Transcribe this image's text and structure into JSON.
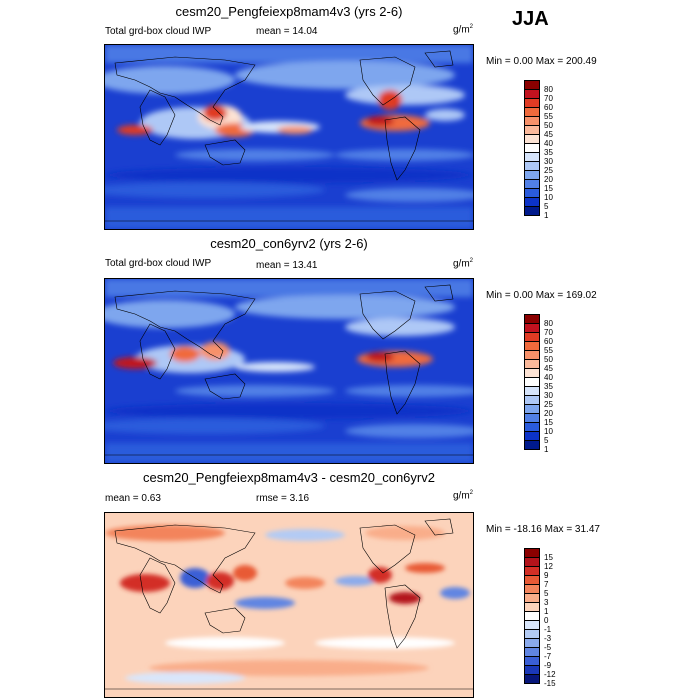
{
  "season": "JJA",
  "panels": [
    {
      "title": "cesm20_Pengfeiexp8mam4v3 (yrs 2-6)",
      "left_label": "Total grd-box cloud IWP",
      "stat": "mean =  14.04",
      "units": "g/m",
      "units_sup": "2",
      "minmax": "Min =   0.00 Max = 200.49",
      "levels": [
        "80",
        "70",
        "60",
        "55",
        "50",
        "45",
        "40",
        "35",
        "30",
        "25",
        "20",
        "15",
        "10",
        "5",
        "1"
      ],
      "colors": [
        "#8b0000",
        "#c1121f",
        "#e03b24",
        "#f06a3c",
        "#f7916a",
        "#fbb99b",
        "#fde3d4",
        "#ffffff",
        "#d6e4fb",
        "#aec8f6",
        "#7ea6ee",
        "#5180e6",
        "#2a5bdc",
        "#0c33c8",
        "#001a8c"
      ]
    },
    {
      "title": "cesm20_con6yrv2 (yrs 2-6)",
      "left_label": "Total grd-box cloud IWP",
      "stat": "mean =  13.41",
      "units": "g/m",
      "units_sup": "2",
      "minmax": "Min =   0.00 Max = 169.02",
      "levels": [
        "80",
        "70",
        "60",
        "55",
        "50",
        "45",
        "40",
        "35",
        "30",
        "25",
        "20",
        "15",
        "10",
        "5",
        "1"
      ],
      "colors": [
        "#8b0000",
        "#c1121f",
        "#e03b24",
        "#f06a3c",
        "#f7916a",
        "#fbb99b",
        "#fde3d4",
        "#ffffff",
        "#d6e4fb",
        "#aec8f6",
        "#7ea6ee",
        "#5180e6",
        "#2a5bdc",
        "#0c33c8",
        "#001a8c"
      ]
    },
    {
      "title": "cesm20_Pengfeiexp8mam4v3 - cesm20_con6yrv2",
      "left_label": "mean =   0.63",
      "stat": "rmse =   3.16",
      "units": "g/m",
      "units_sup": "2",
      "minmax": "Min = -18.16 Max =  31.47",
      "levels": [
        "15",
        "12",
        "9",
        "7",
        "5",
        "3",
        "1",
        "0",
        "-1",
        "-3",
        "-5",
        "-7",
        "-9",
        "-12",
        "-15"
      ],
      "colors": [
        "#8b0000",
        "#b3131b",
        "#d32f26",
        "#e85a36",
        "#f3845c",
        "#f9ad8a",
        "#fcd3bb",
        "#ffffff",
        "#d9e6fb",
        "#b3cbf4",
        "#8aaaec",
        "#6085e2",
        "#3a5fd6",
        "#1a38b8",
        "#07167a"
      ]
    }
  ]
}
